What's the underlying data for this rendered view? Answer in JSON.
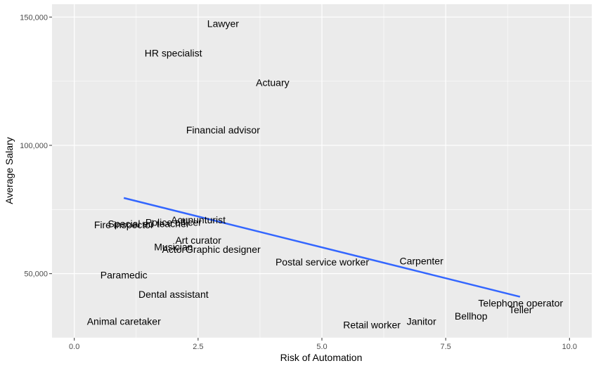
{
  "chart_data": {
    "type": "scatter",
    "title": "",
    "xlabel": "Risk of Automation",
    "ylabel": "Average Salary",
    "xlim": [
      -0.45,
      10.45
    ],
    "ylim": [
      25000,
      155000
    ],
    "x_ticks": [
      0,
      2.5,
      5,
      7.5,
      10
    ],
    "x_tick_labels": [
      "0.0",
      "2.5",
      "5.0",
      "7.5",
      "10.0"
    ],
    "y_ticks": [
      50000,
      100000,
      150000
    ],
    "y_tick_labels": [
      "50,000",
      "100,000",
      "150,000"
    ],
    "grid": true,
    "legend": "none",
    "colors": {
      "panel_bg": "#ebebeb",
      "grid_major": "#ffffff",
      "trend_line": "#3366ff",
      "text": "#000000",
      "tick_text": "#4d4d4d"
    },
    "points": [
      {
        "label": "Lawyer",
        "x": 3.004,
        "y": 147500
      },
      {
        "label": "HR specialist",
        "x": 2.0,
        "y": 136000
      },
      {
        "label": "Actuary",
        "x": 4.005,
        "y": 124500
      },
      {
        "label": "Financial advisor",
        "x": 3.004,
        "y": 106000
      },
      {
        "label": "Acupunturist",
        "x": 2.504,
        "y": 71000
      },
      {
        "label": "Police officer",
        "x": 2.003,
        "y": 70000
      },
      {
        "label": "Special ed teacher",
        "x": 1.502,
        "y": 69500
      },
      {
        "label": "Fire inspector",
        "x": 1.001,
        "y": 69000
      },
      {
        "label": "Art curator",
        "x": 2.504,
        "y": 63000
      },
      {
        "label": "Musician",
        "x": 2.003,
        "y": 60500
      },
      {
        "label": "Actor",
        "x": 2.003,
        "y": 59500
      },
      {
        "label": "Graphic designer",
        "x": 3.004,
        "y": 59500
      },
      {
        "label": "Postal service worker",
        "x": 5.007,
        "y": 54500
      },
      {
        "label": "Carpenter",
        "x": 7.01,
        "y": 55000
      },
      {
        "label": "Paramedic",
        "x": 1.001,
        "y": 49500
      },
      {
        "label": "Dental assistant",
        "x": 2.003,
        "y": 42000
      },
      {
        "label": "Animal caretaker",
        "x": 1.001,
        "y": 31500
      },
      {
        "label": "Retail worker",
        "x": 6.009,
        "y": 30000
      },
      {
        "label": "Janitor",
        "x": 7.01,
        "y": 31500
      },
      {
        "label": "Bellhop",
        "x": 8.012,
        "y": 33500
      },
      {
        "label": "Telephone operator",
        "x": 9.013,
        "y": 38500
      },
      {
        "label": "Teller",
        "x": 9.013,
        "y": 36000
      }
    ],
    "trend_line": {
      "x": [
        1.0,
        9.0
      ],
      "y": [
        79500,
        41000
      ]
    }
  }
}
